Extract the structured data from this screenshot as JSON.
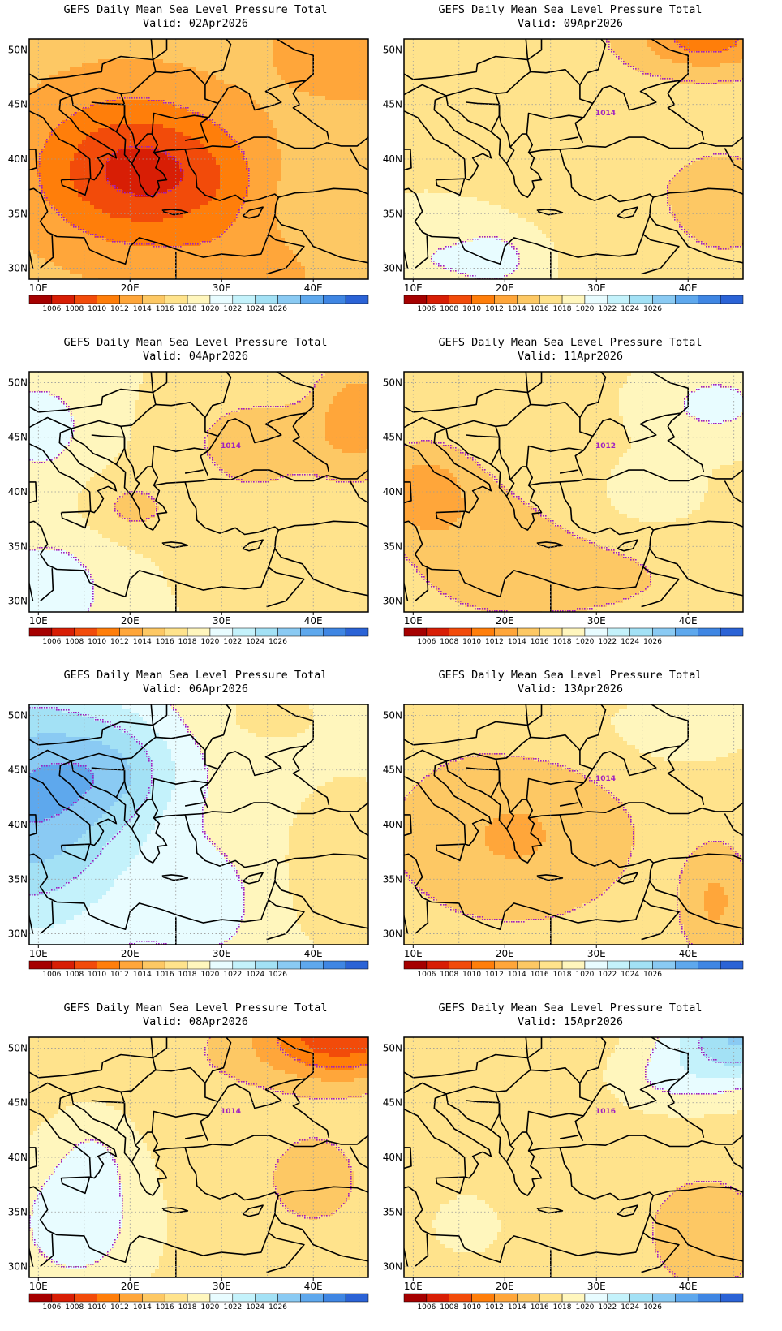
{
  "title": "GEFS Daily Mean Sea Level Pressure Total",
  "colorbar": {
    "colors": [
      "#a50000",
      "#d81e05",
      "#f24b0a",
      "#ff7e0a",
      "#ffa63a",
      "#fdc864",
      "#ffe38c",
      "#fff6bd",
      "#e8fcff",
      "#c4f2fb",
      "#a3e1f5",
      "#8acaf3",
      "#5ea8ed",
      "#3f86e3",
      "#2b63d6"
    ],
    "labels": [
      "1006",
      "1008",
      "1010",
      "1012",
      "1014",
      "1016",
      "1018",
      "1020",
      "1022",
      "1024",
      "1026"
    ]
  },
  "axes": {
    "lon_labels": [
      "10E",
      "20E",
      "30E",
      "40E"
    ],
    "lat_labels": [
      "50N",
      "45N",
      "40N",
      "35N",
      "30N"
    ]
  },
  "panels": [
    {
      "valid": "Valid: 02Apr2026",
      "contour_label": "",
      "field": "p02"
    },
    {
      "valid": "Valid: 09Apr2026",
      "contour_label": "1014",
      "field": "p09"
    },
    {
      "valid": "Valid: 04Apr2026",
      "contour_label": "1014",
      "field": "p04"
    },
    {
      "valid": "Valid: 11Apr2026",
      "contour_label": "1012",
      "field": "p11"
    },
    {
      "valid": "Valid: 06Apr2026",
      "contour_label": "",
      "field": "p06"
    },
    {
      "valid": "Valid: 13Apr2026",
      "contour_label": "1014",
      "field": "p13"
    },
    {
      "valid": "Valid: 08Apr2026",
      "contour_label": "1014",
      "field": "p08"
    },
    {
      "valid": "Valid: 15Apr2026",
      "contour_label": "1016",
      "field": "p15"
    }
  ]
}
